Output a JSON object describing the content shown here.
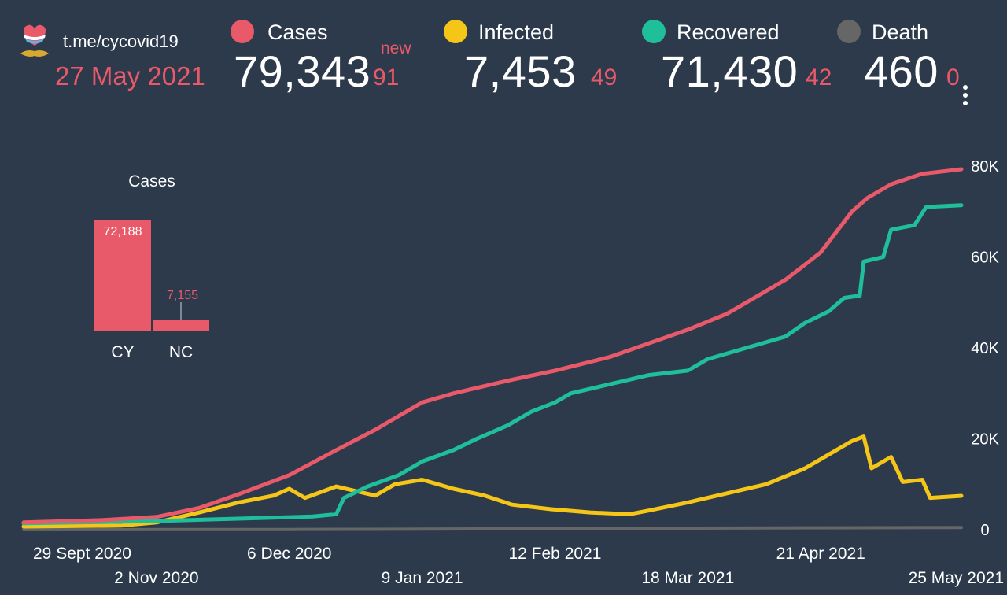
{
  "header": {
    "channel": "t.me/cycovid19",
    "date": "27 May 2021",
    "new_label": "new"
  },
  "stats": [
    {
      "label": "Cases",
      "value": "79,343",
      "delta": "91",
      "color": "#e8596a"
    },
    {
      "label": "Infected",
      "value": "7,453",
      "delta": "49",
      "color": "#f5c518"
    },
    {
      "label": "Recovered",
      "value": "71,430",
      "delta": "42",
      "color": "#1fbf9b"
    },
    {
      "label": "Death",
      "value": "460",
      "delta": "0",
      "color": "#666666"
    }
  ],
  "icons": {
    "logo": "cyprus-heart-logo-icon",
    "menu": "more-vertical-icon"
  },
  "chart_data": [
    {
      "type": "bar",
      "title": "Cases",
      "categories": [
        "CY",
        "NC"
      ],
      "values": [
        72188,
        7155
      ],
      "data_labels": [
        "72,188",
        "7,155"
      ],
      "color": "#e8596a"
    },
    {
      "type": "line",
      "x_tick_labels": [
        "29 Sept 2020",
        "2 Nov 2020",
        "6 Dec 2020",
        "9 Jan 2021",
        "12 Feb 2021",
        "18 Mar 2021",
        "21 Apr 2021",
        "25 May 2021"
      ],
      "x_tick_days": [
        0,
        34,
        68,
        102,
        136,
        170,
        204,
        238
      ],
      "x_range_days": [
        0,
        240
      ],
      "y_ticks": [
        "0",
        "20K",
        "40K",
        "60K",
        "80K"
      ],
      "y_tick_values": [
        0,
        20000,
        40000,
        60000,
        80000
      ],
      "ylim": [
        0,
        82000
      ],
      "series": [
        {
          "name": "Cases",
          "color": "#e8596a",
          "points": [
            [
              0,
              1600
            ],
            [
              20,
              2100
            ],
            [
              34,
              2800
            ],
            [
              45,
              4800
            ],
            [
              55,
              7800
            ],
            [
              68,
              12000
            ],
            [
              80,
              17500
            ],
            [
              90,
              22000
            ],
            [
              96,
              25000
            ],
            [
              102,
              28000
            ],
            [
              110,
              30000
            ],
            [
              125,
              33000
            ],
            [
              136,
              35000
            ],
            [
              150,
              38000
            ],
            [
              160,
              41000
            ],
            [
              170,
              44000
            ],
            [
              180,
              47500
            ],
            [
              195,
              55000
            ],
            [
              204,
              61000
            ],
            [
              212,
              70000
            ],
            [
              216,
              73000
            ],
            [
              222,
              76000
            ],
            [
              230,
              78300
            ],
            [
              240,
              79300
            ]
          ]
        },
        {
          "name": "Infected",
          "color": "#f5c518",
          "points": [
            [
              0,
              700
            ],
            [
              25,
              900
            ],
            [
              34,
              1600
            ],
            [
              45,
              3800
            ],
            [
              55,
              6000
            ],
            [
              64,
              7500
            ],
            [
              68,
              9000
            ],
            [
              72,
              7000
            ],
            [
              80,
              9500
            ],
            [
              90,
              7500
            ],
            [
              95,
              10000
            ],
            [
              102,
              11000
            ],
            [
              110,
              9000
            ],
            [
              118,
              7500
            ],
            [
              125,
              5500
            ],
            [
              135,
              4500
            ],
            [
              145,
              3800
            ],
            [
              155,
              3400
            ],
            [
              160,
              4200
            ],
            [
              170,
              6000
            ],
            [
              180,
              8000
            ],
            [
              190,
              10000
            ],
            [
              200,
              13500
            ],
            [
              205,
              16000
            ],
            [
              212,
              19500
            ],
            [
              215,
              20500
            ],
            [
              217,
              13500
            ],
            [
              222,
              16000
            ],
            [
              225,
              10500
            ],
            [
              230,
              11000
            ],
            [
              232,
              7000
            ],
            [
              240,
              7450
            ]
          ]
        },
        {
          "name": "Recovered",
          "color": "#1fbf9b",
          "points": [
            [
              0,
              1400
            ],
            [
              34,
              1900
            ],
            [
              54,
              2400
            ],
            [
              74,
              2900
            ],
            [
              80,
              3400
            ],
            [
              82,
              7000
            ],
            [
              88,
              9500
            ],
            [
              96,
              12000
            ],
            [
              102,
              15000
            ],
            [
              110,
              17500
            ],
            [
              116,
              20000
            ],
            [
              124,
              23000
            ],
            [
              130,
              26000
            ],
            [
              136,
              28000
            ],
            [
              140,
              30000
            ],
            [
              150,
              32000
            ],
            [
              160,
              34000
            ],
            [
              170,
              35000
            ],
            [
              175,
              37500
            ],
            [
              185,
              40000
            ],
            [
              195,
              42500
            ],
            [
              200,
              45500
            ],
            [
              206,
              48000
            ],
            [
              210,
              51000
            ],
            [
              214,
              51500
            ],
            [
              215,
              59000
            ],
            [
              220,
              60000
            ],
            [
              222,
              66000
            ],
            [
              228,
              67000
            ],
            [
              231,
              71000
            ],
            [
              240,
              71400
            ]
          ]
        },
        {
          "name": "Death",
          "color": "#666666",
          "points": [
            [
              0,
              20
            ],
            [
              68,
              60
            ],
            [
              102,
              120
            ],
            [
              136,
              250
            ],
            [
              170,
              330
            ],
            [
              204,
              420
            ],
            [
              240,
              460
            ]
          ]
        }
      ]
    }
  ]
}
